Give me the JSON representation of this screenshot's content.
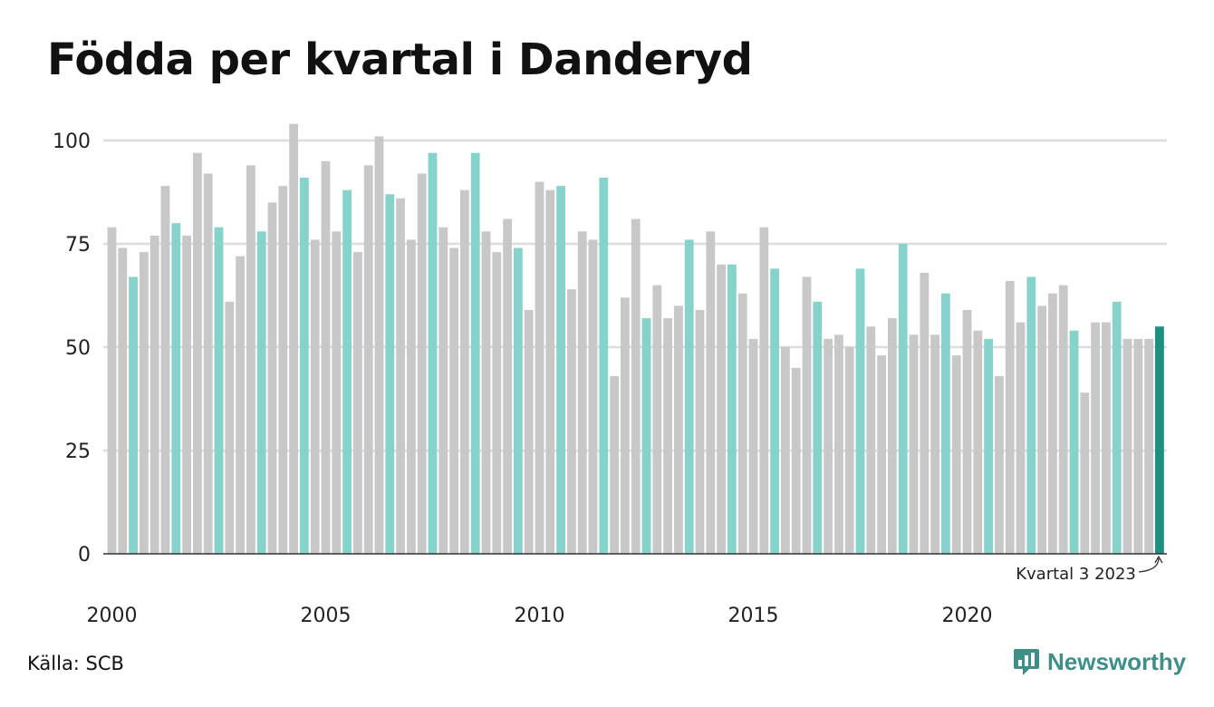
{
  "title": "Födda per kvartal i Danderyd",
  "source": "Källa: SCB",
  "brand": {
    "name": "Newsworthy",
    "icon": "newsworthy-logo-icon"
  },
  "colors": {
    "other_quarter": "#c8c8c8",
    "quarter_3": "#86d3cc",
    "latest": "#1b9184",
    "grid": "#dddddd",
    "axis": "#333333"
  },
  "chart_data": {
    "type": "bar",
    "title": "Födda per kvartal i Danderyd",
    "xlabel": "",
    "ylabel": "",
    "ylim": [
      0,
      105
    ],
    "yticks": [
      0,
      25,
      50,
      75,
      100
    ],
    "xtick_labels": [
      "2000",
      "2005",
      "2010",
      "2015",
      "2020"
    ],
    "grid": true,
    "start_year": 2000,
    "highlight_quarter": 3,
    "annotation": {
      "text": "Kvartal 3 2023"
    },
    "values": [
      79,
      74,
      67,
      73,
      77,
      89,
      80,
      77,
      97,
      92,
      79,
      61,
      72,
      94,
      78,
      85,
      89,
      104,
      91,
      76,
      95,
      78,
      88,
      73,
      94,
      101,
      87,
      86,
      76,
      92,
      97,
      79,
      74,
      88,
      97,
      78,
      73,
      81,
      74,
      59,
      90,
      88,
      89,
      64,
      78,
      76,
      91,
      43,
      62,
      81,
      57,
      65,
      57,
      60,
      76,
      59,
      78,
      70,
      70,
      63,
      52,
      79,
      69,
      50,
      45,
      67,
      61,
      52,
      53,
      50,
      69,
      55,
      48,
      57,
      75,
      53,
      68,
      53,
      63,
      48,
      59,
      54,
      52,
      43,
      66,
      56,
      67,
      60,
      63,
      65,
      54,
      39,
      56,
      56,
      61,
      52,
      52,
      52,
      55
    ]
  }
}
